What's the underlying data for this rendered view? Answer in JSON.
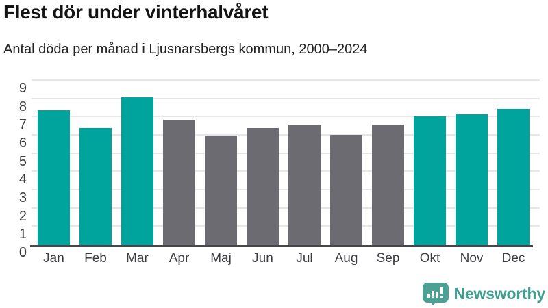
{
  "header": {
    "title": "Flest dör under vinterhalvåret",
    "subtitle": "Antal döda per månad i Ljusnarsbergs kommun, 2000–2024"
  },
  "chart_data": {
    "type": "bar",
    "title": "Flest dör under vinterhalvåret",
    "subtitle": "Antal döda per månad i Ljusnarsbergs kommun, 2000–2024",
    "categories": [
      "Jan",
      "Feb",
      "Mar",
      "Apr",
      "Maj",
      "Jun",
      "Jul",
      "Aug",
      "Sep",
      "Okt",
      "Nov",
      "Dec"
    ],
    "values": [
      7.4,
      6.4,
      8.1,
      6.85,
      6.0,
      6.4,
      6.55,
      6.05,
      6.6,
      7.05,
      7.15,
      7.45
    ],
    "bar_colors": [
      "teal",
      "teal",
      "teal",
      "gray",
      "gray",
      "gray",
      "gray",
      "gray",
      "gray",
      "teal",
      "teal",
      "teal"
    ],
    "palette": {
      "teal": "#00a49c",
      "gray": "#6c6b71"
    },
    "xlabel": "",
    "ylabel": "",
    "ylim": [
      0,
      9
    ],
    "yticks": [
      0,
      1,
      2,
      3,
      4,
      5,
      6,
      7,
      8,
      9
    ],
    "grid": true,
    "legend": false,
    "highlight_meaning": "winter half-year months (Okt–Mar) in teal, summer months (Apr–Sep) in gray"
  },
  "footer": {
    "brand": "Newsworthy",
    "brand_color": "#3fa091",
    "logo_icon": "newsworthy-speech-bubble-bar-chart-icon",
    "logo_icon_color": "#4ba294"
  },
  "colors": {
    "background": "#ffffff",
    "gridline": "#e6e6e8",
    "axis_line": "#47474b",
    "axis_text": "#3c3c41",
    "title_text": "#141414"
  }
}
